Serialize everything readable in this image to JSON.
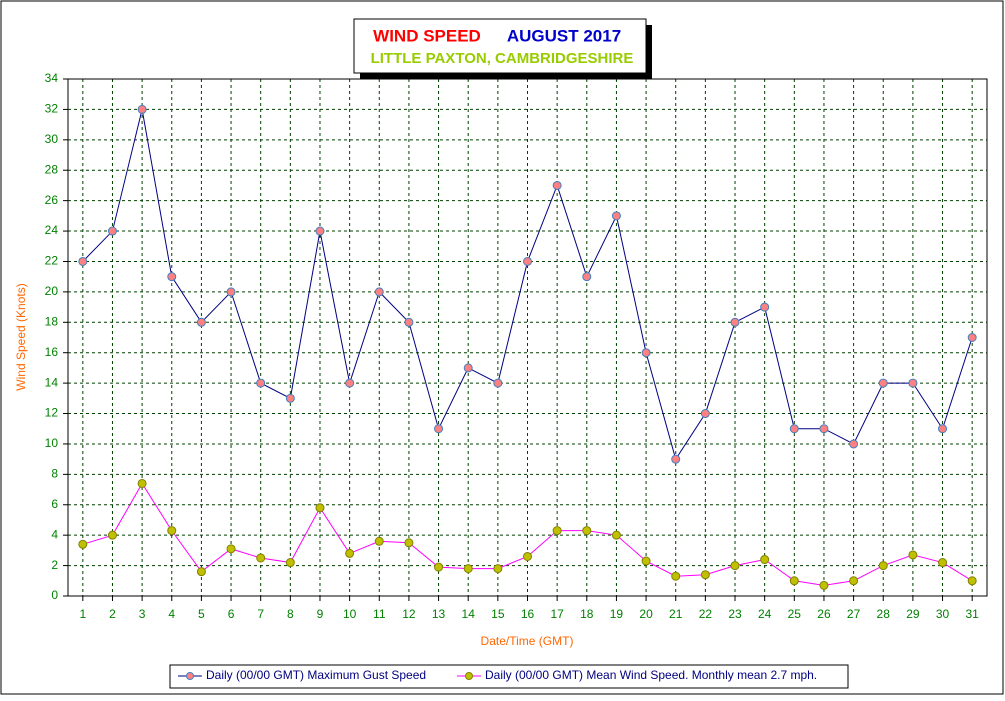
{
  "chart_data": {
    "type": "line",
    "title": "WIND SPEED",
    "title_period": "AUGUST 2017",
    "subtitle": "LITTLE PAXTON, CAMBRIDGESHIRE",
    "xlabel": "Date/Time (GMT)",
    "ylabel": "Wind Speed (Knots)",
    "categories": [
      1,
      2,
      3,
      4,
      5,
      6,
      7,
      8,
      9,
      10,
      11,
      12,
      13,
      14,
      15,
      16,
      17,
      18,
      19,
      20,
      21,
      22,
      23,
      24,
      25,
      26,
      27,
      28,
      29,
      30,
      31
    ],
    "series": [
      {
        "name": "Daily (00/00 GMT) Maximum Gust Speed",
        "color": "#000080",
        "marker_color": "#ff8080",
        "values": [
          22,
          24,
          32,
          21,
          18,
          20,
          14,
          13,
          24,
          14,
          20,
          18,
          11,
          15,
          14,
          22,
          27,
          21,
          25,
          16,
          9,
          12,
          18,
          19,
          11,
          11,
          10,
          14,
          14,
          11,
          17
        ]
      },
      {
        "name": "Daily (00/00 GMT) Mean Wind Speed. Monthly mean 2.7 mph.",
        "color": "#ff00ff",
        "marker_color": "#c0c000",
        "values": [
          3.4,
          4.0,
          7.4,
          4.3,
          1.6,
          3.1,
          2.5,
          2.2,
          5.8,
          2.8,
          3.6,
          3.5,
          1.9,
          1.8,
          1.8,
          2.6,
          4.3,
          4.3,
          4.0,
          2.3,
          1.3,
          1.4,
          2.0,
          2.4,
          1.0,
          0.7,
          1.0,
          2.0,
          2.7,
          2.2,
          1.0
        ]
      }
    ],
    "ylim": [
      0,
      34
    ],
    "yticks": [
      0,
      2,
      4,
      6,
      8,
      10,
      12,
      14,
      16,
      18,
      20,
      22,
      24,
      26,
      28,
      30,
      32,
      34
    ],
    "grid": true,
    "legend": "bottom"
  }
}
